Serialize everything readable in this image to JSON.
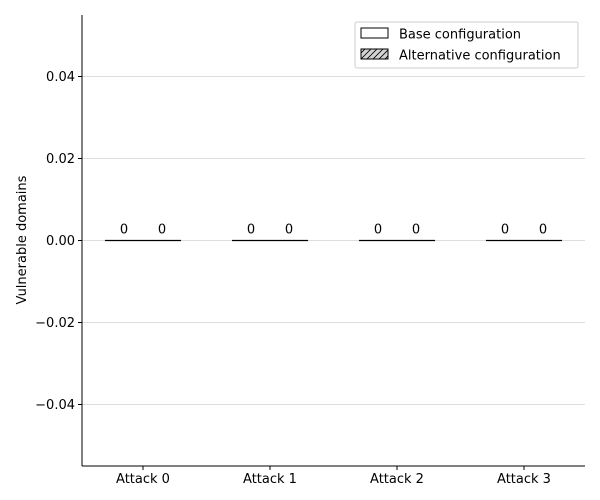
{
  "chart_data": {
    "type": "bar",
    "title": "",
    "xlabel": "",
    "ylabel": "Vulnerable domains",
    "categories": [
      "Attack 0",
      "Attack 1",
      "Attack 2",
      "Attack 3"
    ],
    "series": [
      {
        "name": "Base configuration",
        "values": [
          0,
          0,
          0,
          0
        ],
        "fill": "#ffffff",
        "hatch": "none"
      },
      {
        "name": "Alternative configuration",
        "values": [
          0,
          0,
          0,
          0
        ],
        "fill": "#d3d3d3",
        "hatch": "diagonal"
      }
    ],
    "data_labels": [
      [
        "0",
        "0",
        "0",
        "0"
      ],
      [
        "0",
        "0",
        "0",
        "0"
      ]
    ],
    "ylim": [
      -0.055,
      0.055
    ],
    "yticks": [
      -0.04,
      -0.02,
      0.0,
      0.02,
      0.04
    ],
    "ytick_labels": [
      "−0.04",
      "−0.02",
      "0.00",
      "0.02",
      "0.04"
    ],
    "grid": "horizontal",
    "legend_position": "top-right"
  },
  "colors": {
    "grid": "#dddddd",
    "axis": "#000000",
    "edge": "#000000"
  }
}
